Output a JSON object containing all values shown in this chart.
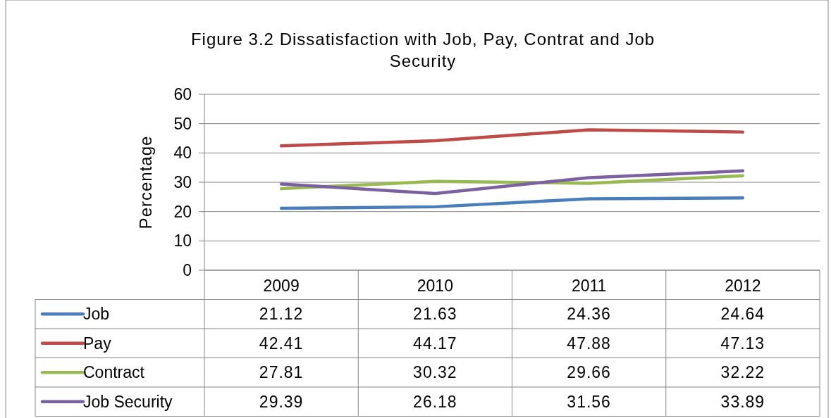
{
  "chart_data": {
    "type": "line",
    "title": "Figure 3.2 Dissatisfaction with Job, Pay, Contrat and Job Security",
    "ylabel": "Percentage",
    "categories": [
      "2009",
      "2010",
      "2011",
      "2012"
    ],
    "series": [
      {
        "name": "Job",
        "color": "#4a7ebb",
        "values": [
          21.12,
          21.63,
          24.36,
          24.64
        ]
      },
      {
        "name": "Pay",
        "color": "#be4b48",
        "values": [
          42.41,
          44.17,
          47.88,
          47.13
        ]
      },
      {
        "name": "Contract",
        "color": "#98b954",
        "values": [
          27.81,
          30.32,
          29.66,
          32.22
        ]
      },
      {
        "name": "Job Security",
        "color": "#7d60a0",
        "values": [
          29.39,
          26.18,
          31.56,
          33.89
        ]
      }
    ],
    "ylim": [
      0,
      60
    ],
    "yticks": [
      0,
      10,
      20,
      30,
      40,
      50,
      60
    ],
    "grid": "y",
    "legend": "bottom",
    "data_labels": true,
    "marker": "none",
    "line_style": "solid"
  }
}
